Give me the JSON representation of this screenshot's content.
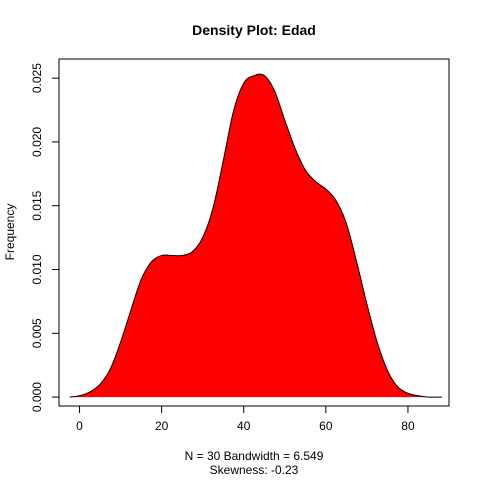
{
  "chart_data": {
    "type": "area",
    "title": "Density Plot: Edad",
    "xlabel": "",
    "ylabel": "Frequency",
    "subtitle_lines": [
      "N = 30   Bandwidth = 6.549",
      "Skewness: -0.23"
    ],
    "xlim": [
      -5,
      90
    ],
    "ylim": [
      -0.0007,
      0.0265
    ],
    "xticks": [
      0,
      20,
      40,
      60,
      80
    ],
    "xtick_labels": [
      "0",
      "20",
      "40",
      "60",
      "80"
    ],
    "yticks": [
      0.0,
      0.005,
      0.01,
      0.015,
      0.02,
      0.025
    ],
    "ytick_labels": [
      "0.000",
      "0.005",
      "0.010",
      "0.015",
      "0.020",
      "0.025"
    ],
    "fill_color": "#ff0000",
    "line_color": "#000000",
    "grid": false,
    "x": [
      -2.4,
      0,
      2.5,
      5,
      7.5,
      10,
      12.5,
      15,
      17.5,
      20,
      22.5,
      25,
      27.5,
      30,
      32.5,
      35,
      37.5,
      40,
      42.5,
      45,
      47.5,
      50,
      52.5,
      55,
      57.5,
      60,
      62.5,
      65,
      67.5,
      70,
      72.5,
      75,
      77.5,
      80,
      82.5,
      85,
      88.3
    ],
    "y": [
      0.0,
      0.0001,
      0.0004,
      0.001,
      0.0022,
      0.0043,
      0.0068,
      0.0092,
      0.0106,
      0.0111,
      0.0111,
      0.0111,
      0.0114,
      0.0125,
      0.0148,
      0.0185,
      0.0224,
      0.0246,
      0.0252,
      0.0252,
      0.024,
      0.0217,
      0.0195,
      0.0178,
      0.0169,
      0.0163,
      0.0154,
      0.0136,
      0.0106,
      0.0073,
      0.0043,
      0.0021,
      0.0008,
      0.0003,
      0.0001,
      0.0,
      0.0
    ]
  }
}
